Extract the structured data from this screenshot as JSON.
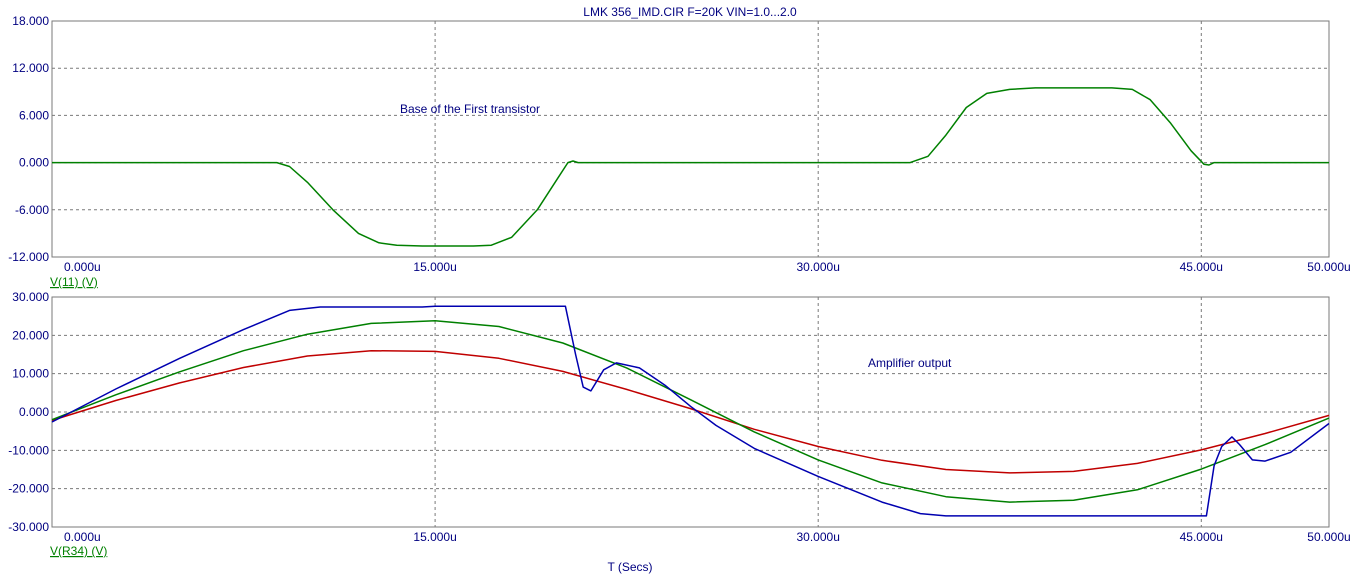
{
  "window_title": "LMK 356_IMD.CIR F=20K VIN=1.0...2.0",
  "x_axis_label": "T (Secs)",
  "chart_data": [
    {
      "type": "line",
      "ylabel": "V(11) (V)",
      "ylabel_color": "#008000",
      "annotation": "Base of the First transistor",
      "xlim": [
        0,
        5e-05
      ],
      "ylim": [
        -12,
        18
      ],
      "x_ticks": [
        "0.000u",
        "15.000u",
        "30.000u",
        "45.000u",
        "50.000u"
      ],
      "x_tick_values": [
        0,
        1.5e-05,
        3e-05,
        4.5e-05,
        5e-05
      ],
      "y_ticks": [
        "18.000",
        "12.000",
        "6.000",
        "0.000",
        "-6.000",
        "-12.000"
      ],
      "y_tick_values": [
        18,
        12,
        6,
        0,
        -6,
        -12
      ],
      "grid": true,
      "series": [
        {
          "color": "#008000",
          "x_us": [
            0,
            8.8,
            9.3,
            10,
            11,
            12,
            12.8,
            13.5,
            14.5,
            15.5,
            16.5,
            17.2,
            18,
            19,
            19.8,
            20.2,
            20.4,
            20.6,
            33.6,
            34.3,
            35,
            35.8,
            36.6,
            37.5,
            38.5,
            40,
            41.5,
            42.3,
            43,
            43.8,
            44.6,
            45.1,
            45.3,
            45.5,
            50
          ],
          "y": [
            0,
            0,
            -0.5,
            -2.5,
            -6,
            -9,
            -10.2,
            -10.5,
            -10.6,
            -10.6,
            -10.6,
            -10.5,
            -9.5,
            -6,
            -2,
            0,
            0.2,
            0,
            0,
            0.8,
            3.5,
            7,
            8.8,
            9.3,
            9.5,
            9.5,
            9.5,
            9.3,
            8,
            5,
            1.5,
            -0.2,
            -0.3,
            0,
            0
          ]
        }
      ]
    },
    {
      "type": "line",
      "ylabel": "V(R34) (V)",
      "ylabel_color": "#008000",
      "annotation": "Amplifier output",
      "xlim": [
        0,
        5e-05
      ],
      "ylim": [
        -30,
        30
      ],
      "x_ticks": [
        "0.000u",
        "15.000u",
        "30.000u",
        "45.000u",
        "50.000u"
      ],
      "x_tick_values": [
        0,
        1.5e-05,
        3e-05,
        4.5e-05,
        5e-05
      ],
      "y_ticks": [
        "30.000",
        "20.000",
        "10.000",
        "0.000",
        "-10.000",
        "-20.000",
        "-30.000"
      ],
      "y_tick_values": [
        30,
        20,
        10,
        0,
        -10,
        -20,
        -30
      ],
      "grid": true,
      "series": [
        {
          "color": "#c00000",
          "x_us": [
            0,
            2.5,
            5,
            7.5,
            10,
            12.5,
            15,
            17.5,
            20,
            22.5,
            25,
            27.5,
            30,
            32.5,
            35,
            37.5,
            40,
            42.5,
            45,
            47.5,
            50
          ],
          "y": [
            -2.2,
            3.0,
            7.6,
            11.6,
            14.6,
            16.0,
            15.8,
            14.0,
            10.6,
            5.9,
            0.9,
            -4.5,
            -9.0,
            -12.6,
            -15.0,
            -15.9,
            -15.5,
            -13.4,
            -9.9,
            -5.6,
            -0.9
          ]
        },
        {
          "color": "#008000",
          "x_us": [
            0,
            2.5,
            5,
            7.5,
            10,
            12.5,
            15,
            17.5,
            20,
            22.5,
            25,
            27.5,
            30,
            32.5,
            35,
            37.5,
            40,
            42.5,
            45,
            47.5,
            50
          ],
          "y": [
            -2.0,
            4.5,
            10.5,
            16.0,
            20.3,
            23.1,
            23.8,
            22.3,
            18.0,
            11.5,
            3.2,
            -5.2,
            -12.5,
            -18.5,
            -22.1,
            -23.5,
            -23.0,
            -20.3,
            -14.9,
            -8.5,
            -1.6
          ]
        },
        {
          "color": "#0000b0",
          "x_us": [
            0,
            2.5,
            5,
            7.5,
            9.3,
            10.5,
            14.5,
            15,
            20.1,
            20.5,
            20.8,
            21.1,
            21.6,
            22.1,
            23,
            24,
            25,
            26,
            27.5,
            30,
            32.5,
            34,
            35,
            40,
            44,
            45.2,
            45.5,
            45.8,
            46.2,
            46.5,
            47,
            47.5,
            48.5,
            50
          ],
          "y": [
            -2.6,
            6.0,
            14.0,
            21.5,
            26.5,
            27.4,
            27.4,
            27.6,
            27.6,
            15.0,
            6.5,
            5.5,
            11.0,
            12.8,
            11.5,
            7.0,
            1.5,
            -3.5,
            -9.5,
            -16.8,
            -23.5,
            -26.5,
            -27.1,
            -27.1,
            -27.1,
            -27.1,
            -14.0,
            -9.0,
            -6.5,
            -8.5,
            -12.5,
            -12.8,
            -10.5,
            -3.0
          ]
        }
      ]
    }
  ]
}
